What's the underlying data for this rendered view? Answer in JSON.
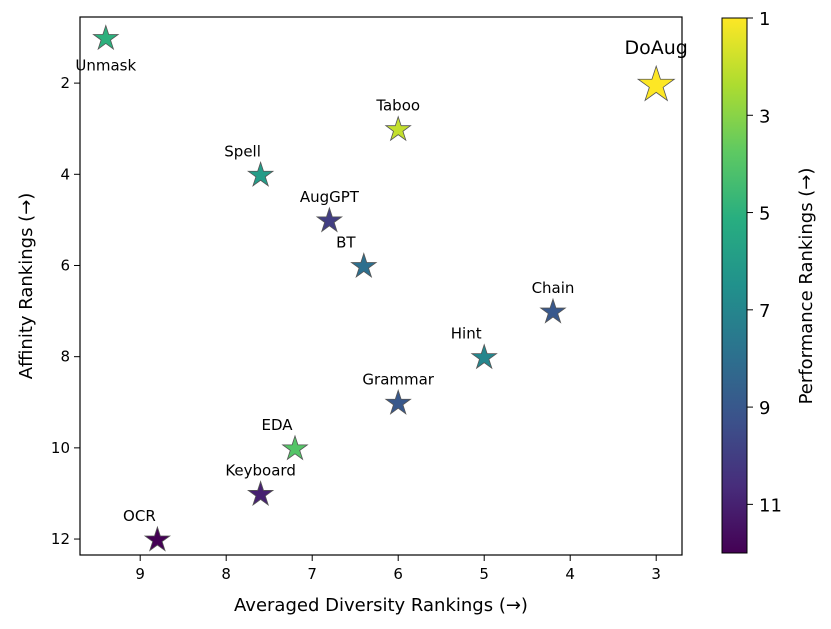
{
  "chart_data": {
    "type": "scatter",
    "marker": "star",
    "xlabel": "Averaged Diversity Rankings (→)",
    "ylabel": "Affinity Rankings (→)",
    "colorbar_label": "Performance Rankings (→)",
    "x_reversed": true,
    "y_reversed": true,
    "xlim": [
      9.7,
      2.7
    ],
    "ylim": [
      12.35,
      0.55
    ],
    "xticks": [
      9,
      8,
      7,
      6,
      5,
      4,
      3
    ],
    "yticks": [
      2,
      4,
      6,
      8,
      10,
      12
    ],
    "colorbar_ticks": [
      1,
      3,
      5,
      7,
      9,
      11
    ],
    "colorbar_range": [
      1,
      12
    ],
    "colormap": "viridis",
    "points": [
      {
        "label": "Unmask",
        "x": 9.4,
        "y": 1,
        "performance": 5,
        "label_pos": "below"
      },
      {
        "label": "DoAug",
        "x": 3.0,
        "y": 2,
        "performance": 1,
        "label_pos": "above",
        "highlight": true
      },
      {
        "label": "Taboo",
        "x": 6.0,
        "y": 3,
        "performance": 2,
        "label_pos": "above"
      },
      {
        "label": "Spell",
        "x": 7.6,
        "y": 4,
        "performance": 6,
        "label_pos": "above-left"
      },
      {
        "label": "AugGPT",
        "x": 6.8,
        "y": 5,
        "performance": 10,
        "label_pos": "above"
      },
      {
        "label": "BT",
        "x": 6.4,
        "y": 6,
        "performance": 8,
        "label_pos": "above-left"
      },
      {
        "label": "Chain",
        "x": 4.2,
        "y": 7,
        "performance": 9,
        "label_pos": "above"
      },
      {
        "label": "Hint",
        "x": 5.0,
        "y": 8,
        "performance": 7,
        "label_pos": "above-left"
      },
      {
        "label": "Grammar",
        "x": 6.0,
        "y": 9,
        "performance": 9,
        "label_pos": "above"
      },
      {
        "label": "EDA",
        "x": 7.2,
        "y": 10,
        "performance": 4,
        "label_pos": "above-left"
      },
      {
        "label": "Keyboard",
        "x": 7.6,
        "y": 11,
        "performance": 11,
        "label_pos": "above"
      },
      {
        "label": "OCR",
        "x": 8.8,
        "y": 12,
        "performance": 12,
        "label_pos": "above-left"
      }
    ]
  }
}
